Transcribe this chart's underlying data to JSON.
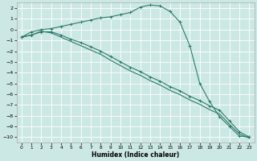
{
  "xlabel": "Humidex (Indice chaleur)",
  "bg_color": "#cce8e4",
  "grid_color": "#ffffff",
  "line_color": "#2d7a6a",
  "xlim": [
    -0.5,
    23.5
  ],
  "ylim": [
    -10.5,
    2.5
  ],
  "xticks": [
    0,
    1,
    2,
    3,
    4,
    5,
    6,
    7,
    8,
    9,
    10,
    11,
    12,
    13,
    14,
    15,
    16,
    17,
    18,
    19,
    20,
    21,
    22,
    23
  ],
  "yticks": [
    2,
    1,
    0,
    -1,
    -2,
    -3,
    -4,
    -5,
    -6,
    -7,
    -8,
    -9,
    -10
  ],
  "line1_x": [
    0,
    1,
    2,
    3,
    4,
    5,
    6,
    7,
    8,
    9,
    10,
    11,
    12,
    13,
    14,
    15,
    16,
    17,
    18,
    19,
    20,
    21,
    22,
    23
  ],
  "line1_y": [
    -0.7,
    -0.2,
    0.0,
    0.1,
    0.3,
    0.5,
    0.7,
    0.9,
    1.1,
    1.2,
    1.4,
    1.6,
    2.1,
    2.3,
    2.2,
    1.7,
    0.7,
    -1.5,
    -5.0,
    -6.7,
    -8.1,
    -9.0,
    -9.9,
    -10.0
  ],
  "line2_x": [
    0,
    1,
    2,
    3,
    4,
    5,
    6,
    7,
    8,
    9,
    10,
    11,
    12,
    13,
    14,
    15,
    16,
    17,
    18,
    19,
    20,
    21,
    22,
    23
  ],
  "line2_y": [
    -0.7,
    -0.5,
    -0.2,
    -0.2,
    -0.5,
    -0.9,
    -1.2,
    -1.6,
    -2.0,
    -2.5,
    -3.0,
    -3.5,
    -3.9,
    -4.4,
    -4.8,
    -5.3,
    -5.7,
    -6.2,
    -6.6,
    -7.1,
    -7.5,
    -8.5,
    -9.5,
    -10.0
  ],
  "line3_x": [
    0,
    1,
    2,
    3,
    4,
    5,
    6,
    7,
    8,
    9,
    10,
    11,
    12,
    13,
    14,
    15,
    16,
    17,
    18,
    19,
    20,
    21,
    22,
    23
  ],
  "line3_y": [
    -0.7,
    -0.5,
    -0.15,
    -0.3,
    -0.7,
    -1.1,
    -1.5,
    -1.9,
    -2.3,
    -2.85,
    -3.35,
    -3.85,
    -4.25,
    -4.75,
    -5.15,
    -5.65,
    -6.05,
    -6.55,
    -6.95,
    -7.45,
    -7.85,
    -8.8,
    -9.7,
    -10.1
  ]
}
